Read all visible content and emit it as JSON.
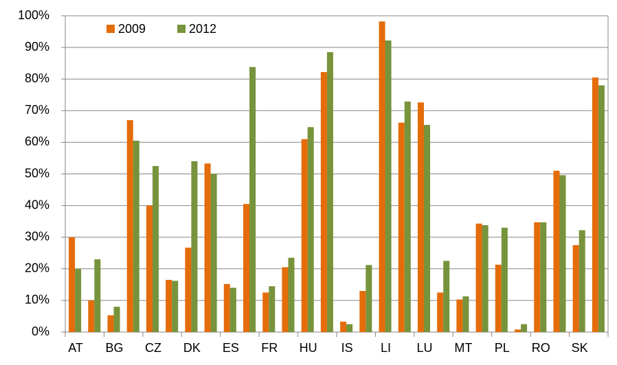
{
  "chart_data": {
    "type": "bar",
    "categories": [
      "AT",
      null,
      "BG",
      null,
      "CZ",
      null,
      "DK",
      null,
      "ES",
      null,
      "FR",
      null,
      "HU",
      null,
      "IS",
      null,
      "LI",
      null,
      "LU",
      null,
      "MT",
      null,
      "PL",
      null,
      "RO",
      null,
      "SK",
      null
    ],
    "series": [
      {
        "name": "2009",
        "color": "#e46c0a",
        "values": [
          30,
          10,
          5.3,
          67,
          40,
          16.5,
          26.7,
          53.3,
          15.2,
          40.5,
          12.5,
          20.5,
          61,
          82.2,
          3.3,
          13,
          98.2,
          66.2,
          72.6,
          12.5,
          10.3,
          34.3,
          21.3,
          0.8,
          34.7,
          51,
          27.5,
          80.5
        ]
      },
      {
        "name": "2012",
        "color": "#77933c",
        "values": [
          20,
          23,
          8,
          60.5,
          52.5,
          16.2,
          54,
          50,
          14,
          83.8,
          14.5,
          23.5,
          64.8,
          88.5,
          2.5,
          21.2,
          92.2,
          72.9,
          65.5,
          22.5,
          11.3,
          33.8,
          33,
          2.5,
          34.7,
          49.6,
          32.2,
          78
        ]
      }
    ],
    "ylim": [
      0,
      100
    ],
    "yticks": [
      {
        "value": 0,
        "label": "0%"
      },
      {
        "value": 10,
        "label": "10%"
      },
      {
        "value": 20,
        "label": "20%"
      },
      {
        "value": 30,
        "label": "30%"
      },
      {
        "value": 40,
        "label": "40%"
      },
      {
        "value": 50,
        "label": "50%"
      },
      {
        "value": 60,
        "label": "60%"
      },
      {
        "value": 70,
        "label": "70%"
      },
      {
        "value": 80,
        "label": "80%"
      },
      {
        "value": 90,
        "label": "90%"
      },
      {
        "value": 100,
        "label": "100%"
      }
    ],
    "grid": true,
    "legend": "top-left"
  }
}
